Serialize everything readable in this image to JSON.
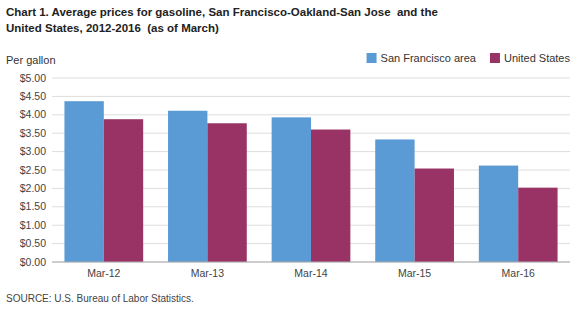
{
  "chart_data": {
    "type": "bar",
    "title": "Chart 1. Average prices for gasoline, San Francisco-Oakland-San Jose  and the",
    "subtitle": "United States, 2012-2016  (as of March)",
    "y_label": "Per gallon",
    "source": "SOURCE: U.S. Bureau of Labor Statistics.",
    "categories": [
      "Mar-12",
      "Mar-13",
      "Mar-14",
      "Mar-15",
      "Mar-16"
    ],
    "series": [
      {
        "name": "San Francisco area",
        "color": "#5B9BD5",
        "values": [
          4.37,
          4.11,
          3.93,
          3.33,
          2.62
        ]
      },
      {
        "name": "United States",
        "color": "#993366",
        "values": [
          3.88,
          3.77,
          3.6,
          2.54,
          2.02
        ]
      }
    ],
    "ylim": [
      0,
      5.0
    ],
    "yticks": [
      {
        "value": 0,
        "label": "$0.00"
      },
      {
        "value": 0.5,
        "label": "$0.50"
      },
      {
        "value": 1.0,
        "label": "$1.00"
      },
      {
        "value": 1.5,
        "label": "$1.50"
      },
      {
        "value": 2.0,
        "label": "$2.00"
      },
      {
        "value": 2.5,
        "label": "$2.50"
      },
      {
        "value": 3.0,
        "label": "$3.00"
      },
      {
        "value": 3.5,
        "label": "$3.50"
      },
      {
        "value": 4.0,
        "label": "$4.00"
      },
      {
        "value": 4.5,
        "label": "$4.50"
      },
      {
        "value": 5.0,
        "label": "$5.00"
      }
    ],
    "grid": true,
    "legend": "upper right"
  }
}
